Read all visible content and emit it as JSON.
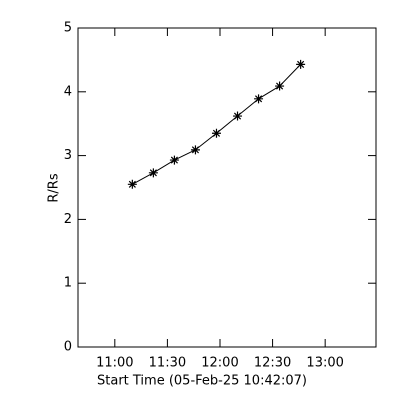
{
  "chart_data": {
    "type": "line",
    "x_label": "Start Time (05-Feb-25 10:42:07)",
    "y_label": "R/Rs",
    "x": [
      670,
      682,
      694,
      706,
      718,
      730,
      742,
      754,
      766
    ],
    "values": [
      2.55,
      2.73,
      2.93,
      3.09,
      3.35,
      3.62,
      3.89,
      4.09,
      4.43
    ],
    "color": "#000000",
    "marker": "asterisk",
    "xlim": [
      639,
      809
    ],
    "xticks": [
      {
        "value": 660,
        "label": "11:00"
      },
      {
        "value": 690,
        "label": "11:30"
      },
      {
        "value": 720,
        "label": "12:00"
      },
      {
        "value": 750,
        "label": "12:30"
      },
      {
        "value": 780,
        "label": "13:00"
      }
    ],
    "ylim": [
      0,
      5
    ],
    "yticks": [
      0,
      1,
      2,
      3,
      4,
      5
    ],
    "grid": false
  }
}
